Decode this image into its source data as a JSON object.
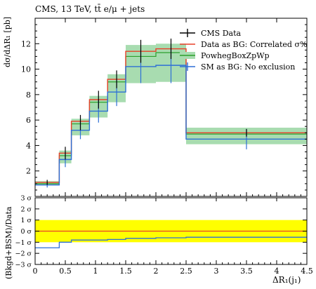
{
  "header": {
    "title": "CMS, 13 TeV, tt̄ e/μ + jets"
  },
  "chart_data": [
    {
      "type": "line",
      "panel": "main",
      "xlabel": "ΔR₁(j₁)",
      "ylabel": "dσ/dΔR₁ [pb]",
      "xlim": [
        0,
        4.5
      ],
      "ylim": [
        0,
        14
      ],
      "bin_edges": [
        0.0,
        0.4,
        0.6,
        0.9,
        1.2,
        1.5,
        2.0,
        2.5,
        4.5
      ],
      "xticks": [
        "0",
        "0.5",
        "1",
        "1.5",
        "2",
        "2.5",
        "3",
        "3.5",
        "4",
        "4.5"
      ],
      "yticks": [
        "2",
        "4",
        "6",
        "8",
        "10",
        "12"
      ],
      "legend_position": "top-right",
      "series": [
        {
          "name": "CMS Data",
          "color": "#000000",
          "style": "points-with-errors",
          "values": [
            1.1,
            3.4,
            5.8,
            7.6,
            9.2,
            11.4,
            11.6,
            5.0
          ],
          "errors": [
            0.2,
            0.5,
            0.6,
            0.7,
            0.7,
            0.9,
            0.8,
            0.3
          ]
        },
        {
          "name": "Data as BG: Correlated σ%",
          "color": "#e8402a",
          "style": "step",
          "values": [
            1.1,
            3.4,
            5.9,
            7.6,
            9.2,
            11.4,
            11.6,
            5.0
          ]
        },
        {
          "name": "PowhegBoxZpWp",
          "color": "#2ca02c",
          "style": "step-band",
          "values": [
            1.0,
            3.2,
            5.7,
            7.4,
            9.0,
            11.0,
            11.3,
            4.9
          ],
          "band_low": [
            0.9,
            2.6,
            4.8,
            6.2,
            7.4,
            8.9,
            9.0,
            4.1
          ],
          "band_high": [
            1.2,
            3.6,
            6.1,
            7.9,
            9.6,
            11.9,
            12.0,
            5.4
          ]
        },
        {
          "name": "SM as BG: No exclusion",
          "color": "#2d6fd6",
          "style": "step-errors",
          "values": [
            0.9,
            2.9,
            5.2,
            6.7,
            8.2,
            10.2,
            10.3,
            4.5
          ],
          "errors": [
            0.2,
            0.6,
            0.7,
            0.9,
            1.1,
            1.3,
            1.4,
            0.8
          ]
        }
      ]
    },
    {
      "type": "line",
      "panel": "ratio",
      "ylabel": "(Bkgd+BSM)/Data",
      "xlim": [
        0,
        4.5
      ],
      "ylim": [
        -3,
        3
      ],
      "yticks": [
        "3 σ",
        "2 σ",
        "1 σ",
        "0 σ",
        "−1 σ",
        "−2 σ",
        "−3 σ"
      ],
      "band": {
        "low": -1,
        "high": 1,
        "color": "#ffff00"
      },
      "series": [
        {
          "name": "Data as BG: Correlated σ%",
          "color": "#e8402a",
          "values": [
            0,
            0,
            0,
            0,
            0,
            0,
            0,
            0
          ]
        },
        {
          "name": "SM as BG: No exclusion",
          "color": "#2d6fd6",
          "values": [
            -1.5,
            -1.0,
            -0.8,
            -0.8,
            -0.75,
            -0.65,
            -0.6,
            -0.55
          ]
        }
      ]
    }
  ]
}
